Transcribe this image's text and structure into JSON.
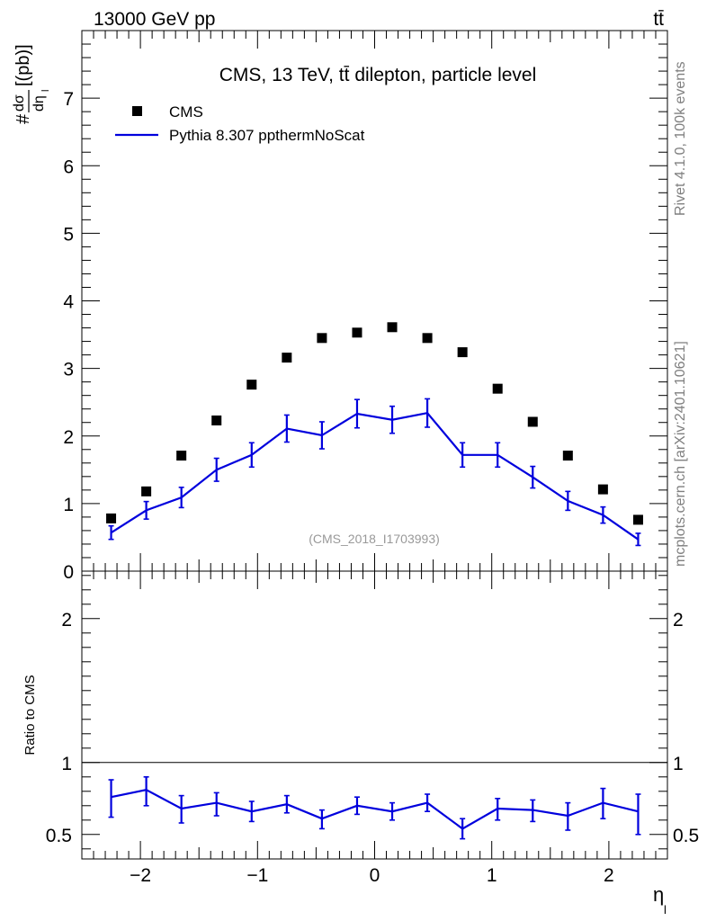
{
  "header": {
    "left": "13000 GeV pp",
    "right": "tt̄"
  },
  "side_text": {
    "top": "Rivet 4.1.0,  100k events",
    "bottom": "mcplots.cern.ch [arXiv:2401.10621]"
  },
  "chart_data": [
    {
      "type": "scatter",
      "panel": "main",
      "title": "CMS, 13 TeV, tt̄ dilepton, particle level",
      "watermark": "(CMS_2018_I1703993)",
      "ylabel": "#dσ/dη_l [(pb)]",
      "xlim": [
        -2.5,
        2.5
      ],
      "ylim": [
        0,
        8
      ],
      "yticks": [
        0,
        1,
        2,
        3,
        4,
        5,
        6,
        7
      ],
      "ytick_labels": [
        "0",
        "1",
        "2",
        "3",
        "4",
        "5",
        "6",
        "7"
      ],
      "legend": {
        "position": "top-left",
        "entries": [
          "CMS",
          "Pythia 8.307 ppthermNoScat"
        ]
      },
      "x": [
        -2.25,
        -1.95,
        -1.65,
        -1.35,
        -1.05,
        -0.75,
        -0.45,
        -0.15,
        0.15,
        0.45,
        0.75,
        1.05,
        1.35,
        1.65,
        1.95,
        2.25
      ],
      "series": [
        {
          "name": "CMS",
          "style": "markers",
          "color": "#000000",
          "values": [
            0.78,
            1.18,
            1.71,
            2.23,
            2.76,
            3.16,
            3.45,
            3.53,
            3.61,
            3.45,
            3.24,
            2.7,
            2.21,
            1.71,
            1.21,
            0.76
          ]
        },
        {
          "name": "Pythia 8.307 ppthermNoScat",
          "style": "line-errorbars",
          "color": "#0000dd",
          "values": [
            0.57,
            0.9,
            1.09,
            1.5,
            1.72,
            2.11,
            2.01,
            2.33,
            2.24,
            2.34,
            1.72,
            1.72,
            1.39,
            1.04,
            0.83,
            0.47
          ],
          "errors": [
            0.1,
            0.13,
            0.15,
            0.17,
            0.18,
            0.2,
            0.2,
            0.21,
            0.2,
            0.21,
            0.18,
            0.18,
            0.16,
            0.14,
            0.12,
            0.09
          ]
        }
      ]
    },
    {
      "type": "line",
      "panel": "ratio",
      "ylabel": "Ratio to CMS",
      "xlabel": "η_l",
      "xlim": [
        -2.5,
        2.5
      ],
      "ylim": [
        0.33,
        2.33
      ],
      "yticks": [
        0.5,
        1,
        2
      ],
      "ytick_labels": [
        "0.5",
        "1",
        "2"
      ],
      "xticks": [
        -2,
        -1,
        0,
        1,
        2
      ],
      "xtick_labels": [
        "−2",
        "−1",
        "0",
        "1",
        "2"
      ],
      "reference_line": 1,
      "x": [
        -2.25,
        -1.95,
        -1.65,
        -1.35,
        -1.05,
        -0.75,
        -0.45,
        -0.15,
        0.15,
        0.45,
        0.75,
        1.05,
        1.35,
        1.65,
        1.95,
        2.25
      ],
      "series": [
        {
          "name": "Pythia 8.307 ppthermNoScat",
          "color": "#0000dd",
          "values": [
            0.76,
            0.81,
            0.68,
            0.72,
            0.66,
            0.71,
            0.61,
            0.7,
            0.66,
            0.72,
            0.54,
            0.68,
            0.67,
            0.63,
            0.72,
            0.66
          ],
          "err_low": [
            0.14,
            0.11,
            0.1,
            0.09,
            0.07,
            0.06,
            0.07,
            0.06,
            0.06,
            0.06,
            0.07,
            0.08,
            0.08,
            0.1,
            0.11,
            0.16
          ],
          "err_high": [
            0.12,
            0.09,
            0.09,
            0.07,
            0.07,
            0.06,
            0.06,
            0.06,
            0.06,
            0.06,
            0.07,
            0.07,
            0.07,
            0.09,
            0.1,
            0.12
          ]
        }
      ]
    }
  ]
}
